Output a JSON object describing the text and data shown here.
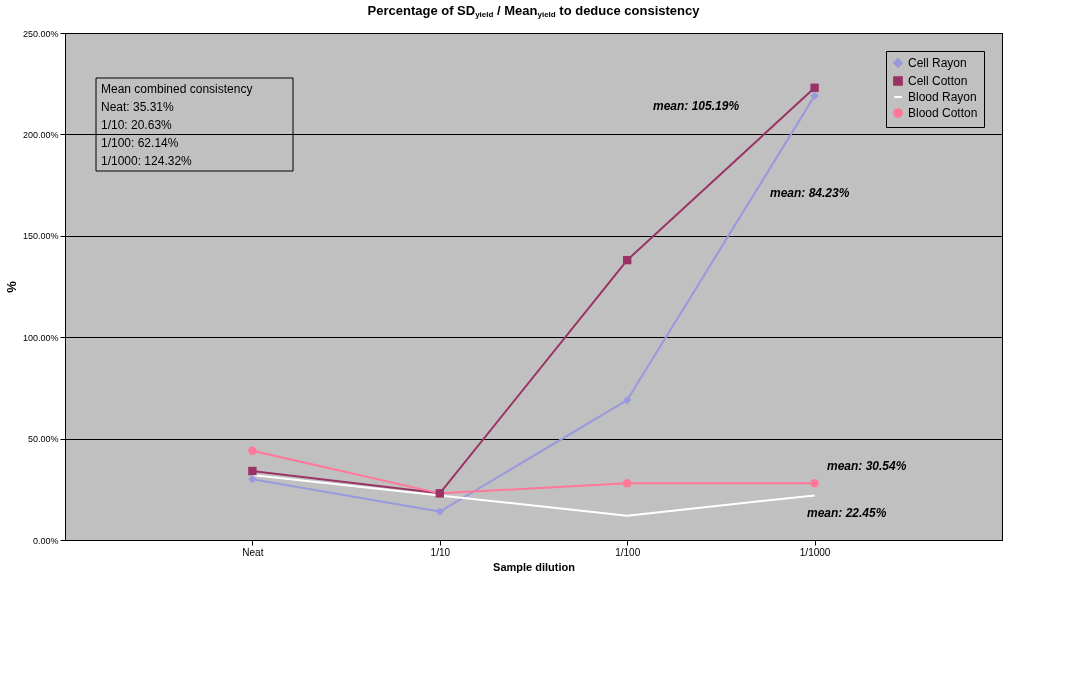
{
  "chart_data": {
    "type": "line",
    "title": "Percentage of SD$_{yield}$ / Mean$_{yield}$ to deduce consistency",
    "xlabel": "Sample dilution",
    "ylabel": "%",
    "categories": [
      "Neat",
      "1/10",
      "1/100",
      "1/1000"
    ],
    "series": [
      {
        "name": "Cell Rayon",
        "color": "#9999dd",
        "marker": "diamond",
        "values": [
          30,
          14,
          69,
          219
        ]
      },
      {
        "name": "Cell Cotton",
        "color": "#993366",
        "marker": "square",
        "values": [
          34,
          23,
          138,
          223
        ]
      },
      {
        "name": "Blood Rayon",
        "color": "#ffffff",
        "marker": "none",
        "values": [
          32,
          22,
          12,
          22
        ]
      },
      {
        "name": "Blood Cotton",
        "color": "#ff7799",
        "marker": "circle",
        "values": [
          44,
          23,
          28,
          28
        ]
      }
    ],
    "ylim": [
      0,
      250
    ],
    "yticks": [
      {
        "value": 0,
        "label": "0.00%"
      },
      {
        "value": 50,
        "label": "50.00%"
      },
      {
        "value": 100,
        "label": "100.00%"
      },
      {
        "value": 150,
        "label": "150.00%"
      },
      {
        "value": 200,
        "label": "200.00%"
      },
      {
        "value": 250,
        "label": "250.00%"
      }
    ],
    "grid": "y",
    "legend": "top right",
    "annotations": [
      "Mean combined consistency",
      "Neat: 35.31%",
      "1/10: 20.63%",
      "1/100: 62.14%",
      "1/1000: 124.32%",
      "mean: 105.19%",
      "mean: 84.23%",
      "mean: 30.54%",
      "mean: 22.45%"
    ]
  }
}
